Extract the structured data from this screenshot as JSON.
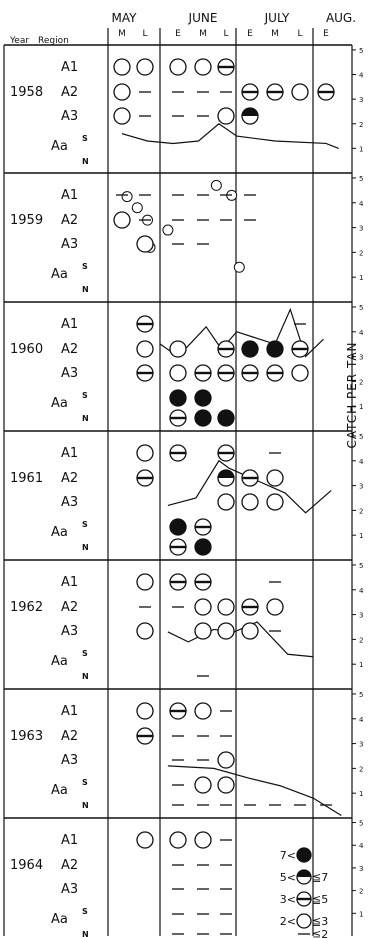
{
  "chart_data": {
    "type": "scatter",
    "header": {
      "year_label": "Year",
      "region_label": "Region",
      "months": [
        "MAY",
        "JUNE",
        "JULY",
        "AUG."
      ],
      "periods": [
        "M",
        "L",
        "E",
        "M",
        "L",
        "E",
        "M",
        "L",
        "E"
      ]
    },
    "right_axis_label": "CATCH PER TAN",
    "right_ticks": [
      "1",
      "2",
      "3",
      "4",
      "5"
    ],
    "region_labels": [
      "A1",
      "A2",
      "A3",
      "Aa"
    ],
    "sub_labels": [
      "S",
      "N"
    ],
    "legend": [
      {
        "label": "7<",
        "level": 5
      },
      {
        "label": "5<",
        "level": 4,
        "suffix": "≦7"
      },
      {
        "label": "3<",
        "level": 3,
        "suffix": "≦5"
      },
      {
        "label": "2<",
        "level": 2,
        "suffix": "≦3"
      },
      {
        "label": "",
        "level": 1,
        "suffix": "≦2"
      }
    ],
    "panels": [
      {
        "year": "1958",
        "cells": [
          [
            "A1",
            0,
            2
          ],
          [
            "A1",
            1,
            2
          ],
          [
            "A1",
            2,
            2
          ],
          [
            "A1",
            3,
            2
          ],
          [
            "A1",
            4,
            3
          ],
          [
            "A2",
            0,
            2
          ],
          [
            "A2",
            1,
            1
          ],
          [
            "A2",
            2,
            1
          ],
          [
            "A2",
            3,
            1
          ],
          [
            "A2",
            4,
            1
          ],
          [
            "A2",
            5,
            3
          ],
          [
            "A2",
            6,
            3
          ],
          [
            "A2",
            7,
            2
          ],
          [
            "A2",
            8,
            3
          ],
          [
            "A3",
            0,
            2
          ],
          [
            "A3",
            1,
            1
          ],
          [
            "A3",
            2,
            1
          ],
          [
            "A3",
            3,
            1
          ],
          [
            "A3",
            4,
            2
          ],
          [
            "A3",
            5,
            4
          ]
        ],
        "catch_line": [
          [
            0,
            1.6
          ],
          [
            1,
            1.3
          ],
          [
            2,
            1.2
          ],
          [
            3,
            1.3
          ],
          [
            3.8,
            2.0
          ],
          [
            4.5,
            1.5
          ],
          [
            6,
            1.3
          ],
          [
            8,
            1.2
          ],
          [
            8.5,
            1.0
          ]
        ]
      },
      {
        "year": "1959",
        "cells": [
          [
            "A1",
            0,
            1
          ],
          [
            "A1",
            1,
            1
          ],
          [
            "A1",
            2,
            1
          ],
          [
            "A1",
            3,
            1
          ],
          [
            "A1",
            4,
            1
          ],
          [
            "A1",
            5,
            1
          ],
          [
            "A2",
            0,
            2
          ],
          [
            "A2",
            1,
            1
          ],
          [
            "A2",
            2,
            1
          ],
          [
            "A2",
            3,
            1
          ],
          [
            "A2",
            4,
            1
          ],
          [
            "A2",
            5,
            1
          ],
          [
            "A3",
            1,
            2
          ],
          [
            "A3",
            2,
            1
          ],
          [
            "A3",
            3,
            1
          ]
        ],
        "small_circles": [
          [
            0.2,
            4.25
          ],
          [
            0.6,
            3.8
          ],
          [
            1.0,
            3.3
          ],
          [
            1.8,
            2.9
          ],
          [
            3.7,
            4.7
          ],
          [
            4.3,
            4.3
          ],
          [
            1.1,
            2.2
          ],
          [
            4.6,
            1.4
          ]
        ],
        "catch_line": []
      },
      {
        "year": "1960",
        "cells": [
          [
            "A1",
            1,
            3
          ],
          [
            "A1",
            7,
            1
          ],
          [
            "A2",
            1,
            2
          ],
          [
            "A2",
            2,
            2
          ],
          [
            "A2",
            4,
            3
          ],
          [
            "A2",
            5,
            5
          ],
          [
            "A2",
            6,
            5
          ],
          [
            "A2",
            7,
            3
          ],
          [
            "A3",
            1,
            3
          ],
          [
            "A3",
            2,
            2
          ],
          [
            "A3",
            3,
            3
          ],
          [
            "A3",
            4,
            3
          ],
          [
            "A3",
            5,
            3
          ],
          [
            "A3",
            6,
            3
          ],
          [
            "A3",
            7,
            2
          ],
          [
            "S",
            2,
            5
          ],
          [
            "S",
            3,
            5
          ],
          [
            "N",
            2,
            3
          ],
          [
            "N",
            3,
            5
          ],
          [
            "N",
            4,
            5
          ]
        ],
        "catch_line": [
          [
            1.5,
            3.5
          ],
          [
            2.2,
            3.0
          ],
          [
            3.3,
            4.2
          ],
          [
            3.9,
            3.3
          ],
          [
            4.5,
            4.0
          ],
          [
            6.0,
            3.5
          ],
          [
            6.6,
            4.9
          ],
          [
            7.2,
            3.0
          ],
          [
            7.9,
            3.7
          ]
        ]
      },
      {
        "year": "1961",
        "cells": [
          [
            "A1",
            1,
            2
          ],
          [
            "A1",
            2,
            3
          ],
          [
            "A1",
            4,
            3
          ],
          [
            "A1",
            6,
            1
          ],
          [
            "A2",
            1,
            3
          ],
          [
            "A2",
            4,
            4
          ],
          [
            "A2",
            5,
            3
          ],
          [
            "A2",
            6,
            2
          ],
          [
            "A3",
            4,
            2
          ],
          [
            "A3",
            5,
            2
          ],
          [
            "A3",
            6,
            2
          ],
          [
            "S",
            2,
            5
          ],
          [
            "S",
            3,
            3
          ],
          [
            "N",
            2,
            3
          ],
          [
            "N",
            3,
            5
          ]
        ],
        "catch_line": [
          [
            1.8,
            2.2
          ],
          [
            2.9,
            2.5
          ],
          [
            3.8,
            4.0
          ],
          [
            4.2,
            3.7
          ],
          [
            5.3,
            3.2
          ],
          [
            6.4,
            2.7
          ],
          [
            7.2,
            1.9
          ],
          [
            8.2,
            2.8
          ]
        ]
      },
      {
        "year": "1962",
        "cells": [
          [
            "A1",
            1,
            2
          ],
          [
            "A1",
            2,
            3
          ],
          [
            "A1",
            3,
            3
          ],
          [
            "A1",
            6,
            1
          ],
          [
            "A2",
            1,
            1
          ],
          [
            "A2",
            2,
            1
          ],
          [
            "A2",
            3,
            2
          ],
          [
            "A2",
            4,
            2
          ],
          [
            "A2",
            5,
            3
          ],
          [
            "A2",
            6,
            2
          ],
          [
            "A3",
            1,
            2
          ],
          [
            "A3",
            3,
            2
          ],
          [
            "A3",
            4,
            2
          ],
          [
            "A3",
            5,
            2
          ],
          [
            "A3",
            6,
            1
          ],
          [
            "N",
            3,
            1
          ]
        ],
        "catch_line": [
          [
            1.8,
            2.3
          ],
          [
            2.6,
            1.9
          ],
          [
            3.6,
            2.4
          ],
          [
            4.4,
            2.3
          ],
          [
            5.3,
            2.7
          ],
          [
            6.5,
            1.4
          ],
          [
            7.5,
            1.3
          ]
        ]
      },
      {
        "year": "1963",
        "cells": [
          [
            "A1",
            1,
            2
          ],
          [
            "A1",
            2,
            3
          ],
          [
            "A1",
            3,
            2
          ],
          [
            "A1",
            4,
            1
          ],
          [
            "A2",
            1,
            3
          ],
          [
            "A2",
            2,
            1
          ],
          [
            "A2",
            3,
            1
          ],
          [
            "A2",
            4,
            1
          ],
          [
            "A3",
            2,
            1
          ],
          [
            "A3",
            3,
            1
          ],
          [
            "A3",
            4,
            2
          ],
          [
            "S",
            2,
            1
          ],
          [
            "S",
            3,
            2
          ],
          [
            "S",
            4,
            2
          ],
          [
            "N",
            2,
            1
          ],
          [
            "N",
            3,
            1
          ],
          [
            "N",
            4,
            1
          ],
          [
            "N",
            5,
            1
          ],
          [
            "N",
            6,
            1
          ],
          [
            "N",
            7,
            1
          ],
          [
            "N",
            8,
            1
          ]
        ],
        "catch_line": [
          [
            1.8,
            2.1
          ],
          [
            3.6,
            2.0
          ],
          [
            5.0,
            1.6
          ],
          [
            6.2,
            1.3
          ],
          [
            7.5,
            0.8
          ],
          [
            8.6,
            0.1
          ]
        ]
      },
      {
        "year": "1964",
        "cells": [
          [
            "A1",
            1,
            2
          ],
          [
            "A1",
            2,
            2
          ],
          [
            "A1",
            3,
            2
          ],
          [
            "A1",
            4,
            1
          ],
          [
            "A2",
            2,
            1
          ],
          [
            "A2",
            3,
            1
          ],
          [
            "A2",
            4,
            1
          ],
          [
            "A3",
            2,
            1
          ],
          [
            "A3",
            3,
            1
          ],
          [
            "A3",
            4,
            1
          ],
          [
            "S",
            2,
            1
          ],
          [
            "S",
            3,
            1
          ],
          [
            "S",
            4,
            1
          ],
          [
            "N",
            2,
            1
          ],
          [
            "N",
            3,
            1
          ],
          [
            "N",
            4,
            1
          ]
        ],
        "catch_line": []
      }
    ]
  }
}
